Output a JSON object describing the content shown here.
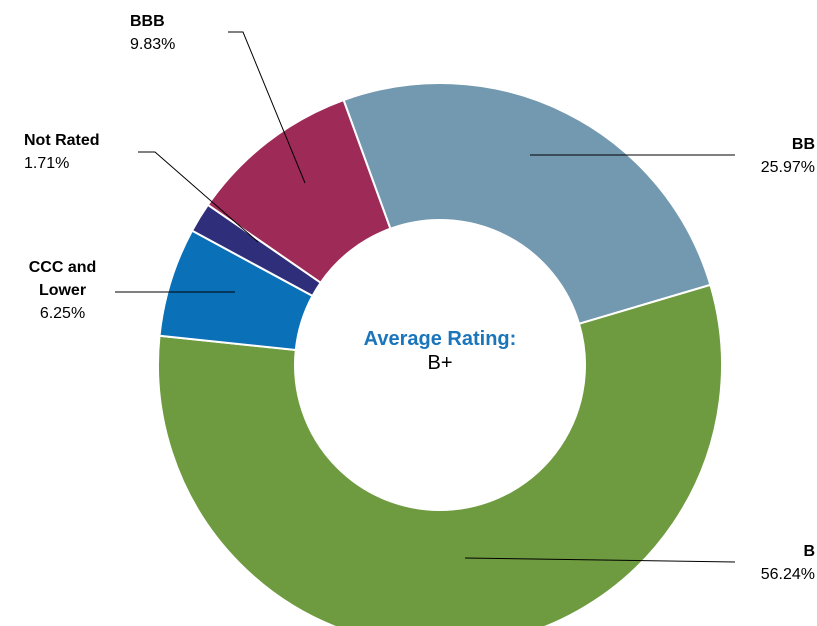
{
  "chart_data": {
    "type": "donut",
    "categories": [
      "BB",
      "B",
      "CCC and Lower",
      "Not Rated",
      "BBB"
    ],
    "values": [
      25.97,
      56.24,
      6.25,
      1.71,
      9.83
    ],
    "value_labels": [
      "25.97%",
      "56.24%",
      "6.25%",
      "1.71%",
      "9.83%"
    ],
    "colors": [
      "#7399b0",
      "#6e9a40",
      "#0a70b8",
      "#2e2e7a",
      "#9e2a58"
    ],
    "center_title": "Average Rating:",
    "center_value": "B+"
  }
}
